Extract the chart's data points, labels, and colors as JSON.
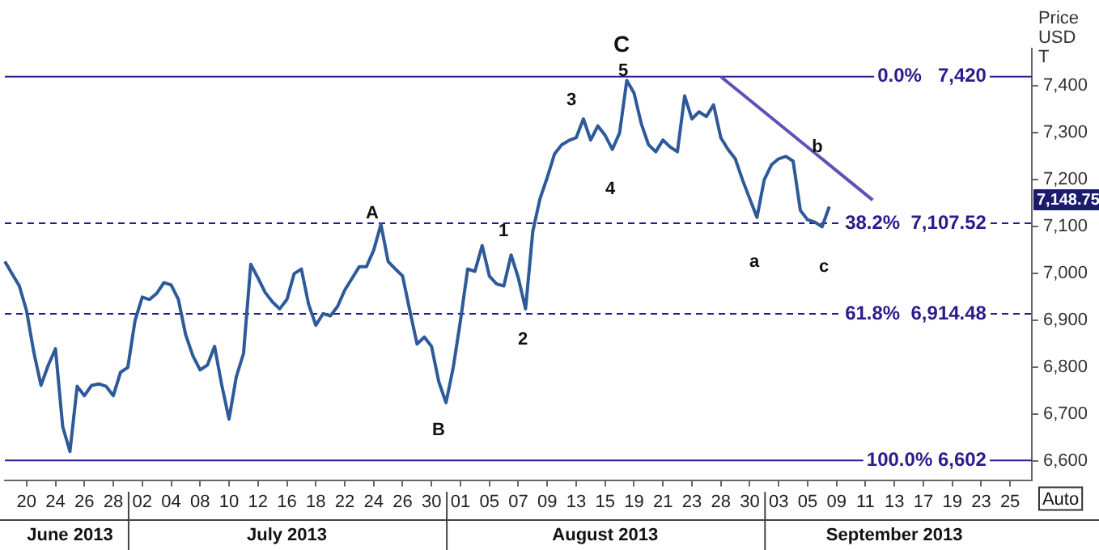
{
  "chart_data": {
    "type": "line",
    "categories": [
      null,
      null,
      null,
      "20",
      null,
      null,
      null,
      "24",
      null,
      null,
      null,
      "26",
      null,
      null,
      null,
      "28",
      null,
      null,
      null,
      "02",
      null,
      null,
      null,
      "04",
      null,
      null,
      null,
      "08",
      null,
      null,
      null,
      "10",
      null,
      null,
      null,
      "12",
      null,
      null,
      null,
      "16",
      null,
      null,
      null,
      "18",
      null,
      null,
      null,
      "22",
      null,
      null,
      null,
      "24",
      null,
      null,
      null,
      "26",
      null,
      null,
      null,
      "30",
      null,
      null,
      null,
      "01",
      null,
      null,
      null,
      "05",
      null,
      null,
      null,
      "07",
      null,
      null,
      null,
      "09",
      null,
      null,
      null,
      "13",
      null,
      null,
      null,
      "15",
      null,
      null,
      null,
      "19",
      null,
      null,
      null,
      "21",
      null,
      null,
      null,
      "23",
      null,
      null,
      null,
      "28",
      null,
      null,
      null,
      "30",
      null,
      null,
      null,
      "03",
      null,
      null,
      null,
      "05",
      null,
      null,
      null,
      "09",
      null,
      null,
      null,
      "11",
      null,
      null,
      null,
      "13",
      null,
      null,
      null,
      "17",
      null,
      null,
      null,
      "19",
      null,
      null,
      null,
      "23",
      null,
      null,
      null,
      "25",
      null,
      null,
      null
    ],
    "series": [
      {
        "color": "#2e5a9a",
        "values": [
          7026,
          7000,
          6974,
          6921,
          6833,
          6762,
          6805,
          6840,
          6674,
          6621,
          6760,
          6740,
          6762,
          6765,
          6760,
          6740,
          6790,
          6800,
          6900,
          6950,
          6945,
          6958,
          6981,
          6976,
          6945,
          6870,
          6825,
          6795,
          6805,
          6845,
          6762,
          6690,
          6780,
          6830,
          7020,
          6991,
          6960,
          6940,
          6925,
          6945,
          7000,
          7010,
          6935,
          6890,
          6915,
          6910,
          6930,
          6965,
          6990,
          7015,
          7015,
          7050,
          7105,
          7026,
          7010,
          6995,
          6921,
          6850,
          6865,
          6845,
          6770,
          6725,
          6800,
          6900,
          7010,
          7005,
          7060,
          6995,
          6978,
          6974,
          7040,
          6991,
          6925,
          7090,
          7160,
          7205,
          7255,
          7275,
          7284,
          7290,
          7330,
          7285,
          7315,
          7295,
          7265,
          7300,
          7412,
          7385,
          7320,
          7275,
          7260,
          7285,
          7270,
          7260,
          7379,
          7330,
          7345,
          7335,
          7360,
          7290,
          7265,
          7245,
          7200,
          7160,
          7120,
          7200,
          7232,
          7245,
          7250,
          7240,
          7135,
          7115,
          7110,
          7100,
          7143,
          null,
          null,
          null,
          null,
          null,
          null,
          null,
          null,
          null,
          null,
          null,
          null,
          null,
          null,
          null,
          null,
          null,
          null,
          null,
          null,
          null,
          null,
          null,
          null,
          null,
          null,
          null,
          null
        ]
      },
      {
        "type": "line",
        "color": "#5b52b5",
        "values": [
          null,
          null,
          null,
          null,
          null,
          null,
          null,
          null,
          null,
          null,
          null,
          null,
          null,
          null,
          null,
          null,
          null,
          null,
          null,
          null,
          null,
          null,
          null,
          null,
          null,
          null,
          null,
          null,
          null,
          null,
          null,
          null,
          null,
          null,
          null,
          null,
          null,
          null,
          null,
          null,
          null,
          null,
          null,
          null,
          null,
          null,
          null,
          null,
          null,
          null,
          null,
          null,
          null,
          null,
          null,
          null,
          null,
          null,
          null,
          null,
          null,
          null,
          null,
          null,
          null,
          null,
          null,
          null,
          null,
          null,
          null,
          null,
          null,
          null,
          null,
          null,
          null,
          null,
          null,
          null,
          null,
          null,
          null,
          null,
          null,
          null,
          null,
          null,
          null,
          null,
          null,
          null,
          null,
          null,
          null,
          null,
          null,
          null,
          null,
          7420,
          null,
          null,
          null,
          null,
          null,
          null,
          null,
          null,
          null,
          null,
          null,
          null,
          null,
          null,
          null,
          null,
          null,
          null,
          null,
          null,
          7157,
          null,
          null,
          null,
          null,
          null,
          null,
          null,
          null,
          null,
          null,
          null,
          null,
          null,
          null,
          null,
          null,
          null,
          null,
          null,
          null,
          null,
          null
        ]
      }
    ],
    "ylabel": "Price USD T",
    "ylim": [
      6560,
      7480
    ],
    "yticks": [
      {
        "value": 6600,
        "label": "6,600"
      },
      {
        "value": 6700,
        "label": "6,700"
      },
      {
        "value": 6800,
        "label": "6,800"
      },
      {
        "value": 6900,
        "label": "6,900"
      },
      {
        "value": 7000,
        "label": "7,000"
      },
      {
        "value": 7100,
        "label": "7,100"
      },
      {
        "value": 7200,
        "label": "7,200"
      },
      {
        "value": 7300,
        "label": "7,300"
      },
      {
        "value": 7400,
        "label": "7,400"
      }
    ],
    "ref_lines": [
      {
        "axis": "y",
        "value": 7420,
        "label": "0.0%   7,420",
        "color": "#2b1a8c",
        "line_style": "solid"
      },
      {
        "axis": "y",
        "value": 7107.52,
        "label": "38.2%  7,107.52",
        "color": "#2b1a8c",
        "line_style": "dashed"
      },
      {
        "axis": "y",
        "value": 6914.48,
        "label": "61.8%  6,914.48",
        "color": "#2b1a8c",
        "line_style": "dashed"
      },
      {
        "axis": "y",
        "value": 6602,
        "label": "100.0% 6,602",
        "color": "#2b1a8c",
        "line_style": "solid"
      }
    ],
    "annotations": [
      "A",
      "B",
      "1",
      "2",
      "3",
      "4",
      "5",
      "C",
      "a",
      "b",
      "c",
      "7,148.75",
      "June 2013",
      "July 2013",
      "August 2013",
      "September 2013",
      "Auto"
    ]
  }
}
